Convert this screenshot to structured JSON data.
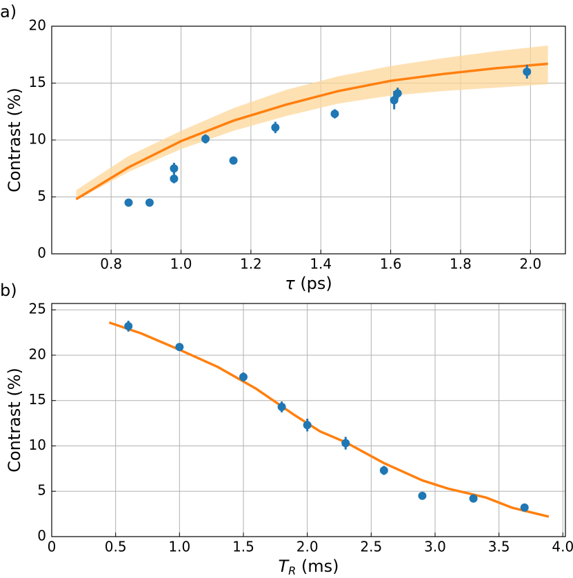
{
  "chart_data": [
    {
      "type": "scatter",
      "panel_label": "a)",
      "ylabel": "Contrast (%)",
      "xlabel": {
        "symbol": "τ",
        "unit": "(ps)"
      },
      "xlim": [
        0.63,
        2.1
      ],
      "ylim": [
        0,
        20
      ],
      "xticks": [
        0.8,
        {
          "value": 1.0,
          "label": "1.0"
        },
        1.2,
        1.4,
        1.6,
        1.8,
        {
          "value": 2.0,
          "label": "2.0"
        }
      ],
      "yticks": [
        0,
        5,
        10,
        15,
        20
      ],
      "grid": true,
      "band": {
        "color": "#fdd79a",
        "x": [
          0.7,
          0.85,
          1.0,
          1.15,
          1.3,
          1.45,
          1.6,
          1.75,
          1.9,
          2.05
        ],
        "lower": [
          4.7,
          7.2,
          9.2,
          10.8,
          12.1,
          13.2,
          13.9,
          14.3,
          14.6,
          14.9
        ],
        "upper": [
          5.6,
          8.6,
          10.8,
          12.8,
          14.4,
          15.6,
          16.5,
          17.2,
          17.8,
          18.3
        ]
      },
      "fit": {
        "color": "#ff7f0e",
        "x": [
          0.7,
          0.85,
          1.0,
          1.15,
          1.3,
          1.45,
          1.6,
          1.75,
          1.9,
          2.05
        ],
        "values": [
          4.8,
          7.6,
          9.9,
          11.7,
          13.1,
          14.3,
          15.2,
          15.8,
          16.3,
          16.7
        ]
      },
      "points": {
        "color": "#1f77b4",
        "x": [
          0.85,
          0.91,
          0.98,
          0.98,
          1.07,
          1.15,
          1.27,
          1.44,
          1.61,
          1.62,
          1.99
        ],
        "values": [
          4.5,
          4.5,
          6.6,
          7.5,
          10.1,
          8.2,
          11.1,
          12.3,
          13.5,
          14.1,
          16.0
        ],
        "errors": [
          0.3,
          0.2,
          0.4,
          0.5,
          0.4,
          0.2,
          0.5,
          0.4,
          0.8,
          0.5,
          0.6
        ]
      }
    },
    {
      "type": "scatter",
      "panel_label": "b)",
      "ylabel": "Contrast (%)",
      "xlabel": {
        "symbol": "T",
        "subscript": "R",
        "unit": "(ms)"
      },
      "xlim": [
        0,
        4.02
      ],
      "ylim": [
        0,
        25.7
      ],
      "xticks": [
        0,
        0.5,
        {
          "value": 1.0,
          "label": "1.0"
        },
        1.5,
        {
          "value": 2.0,
          "label": "2.0"
        },
        2.5,
        {
          "value": 3.0,
          "label": "3.0"
        },
        3.5,
        {
          "value": 4.0,
          "label": "4.0"
        }
      ],
      "yticks": [
        0,
        5,
        10,
        15,
        20,
        25
      ],
      "grid": true,
      "fit": {
        "color": "#ff7f0e",
        "x": [
          0.45,
          0.7,
          1.0,
          1.3,
          1.6,
          1.9,
          2.1,
          2.3,
          2.6,
          2.9,
          3.1,
          3.4,
          3.6,
          3.89
        ],
        "values": [
          23.6,
          22.4,
          20.6,
          18.7,
          16.3,
          13.4,
          11.6,
          10.4,
          8.1,
          6.2,
          5.3,
          4.3,
          3.2,
          2.2
        ]
      },
      "points": {
        "color": "#1f77b4",
        "x": [
          0.6,
          1.0,
          1.5,
          1.8,
          2.0,
          2.3,
          2.6,
          2.9,
          3.3,
          3.7
        ],
        "values": [
          23.2,
          20.9,
          17.6,
          14.3,
          12.3,
          10.3,
          7.3,
          4.5,
          4.2,
          3.2
        ],
        "errors": [
          0.6,
          0.4,
          0.5,
          0.6,
          0.7,
          0.7,
          0.5,
          0.2,
          0.2,
          0.3
        ]
      }
    }
  ]
}
